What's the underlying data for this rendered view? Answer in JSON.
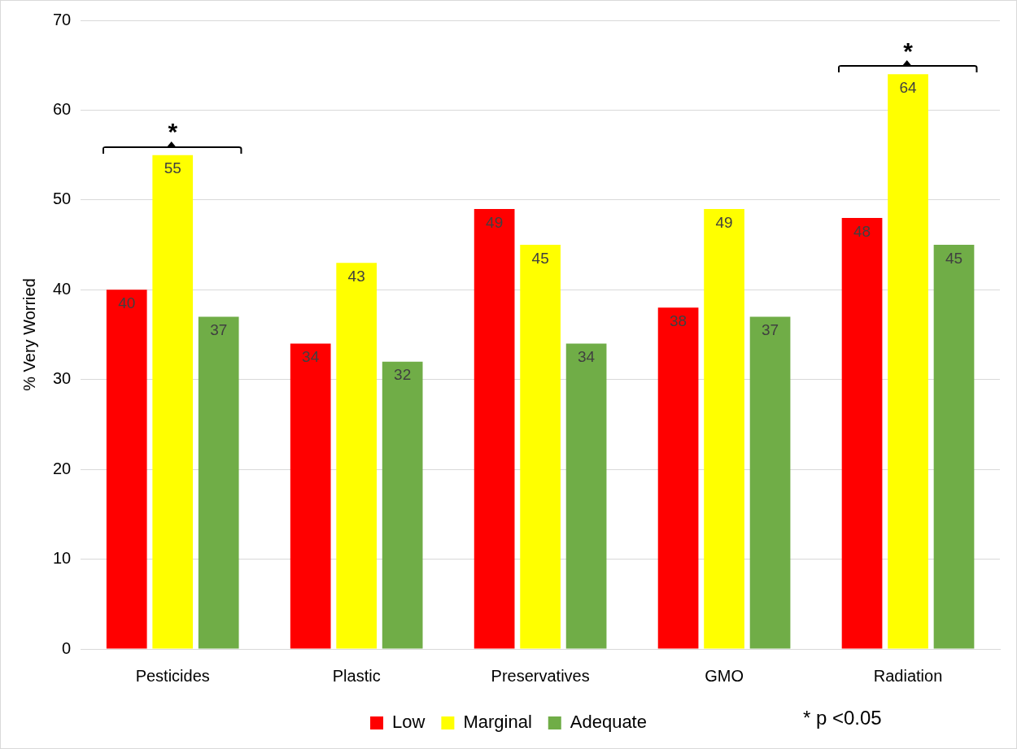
{
  "chart_data": {
    "type": "bar",
    "ylabel": "% Very Worried",
    "categories": [
      "Pesticides",
      "Plastic",
      "Preservatives",
      "GMO",
      "Radiation"
    ],
    "series": [
      {
        "name": "Low",
        "color": "#ff0000",
        "values": [
          40,
          34,
          49,
          38,
          48
        ]
      },
      {
        "name": "Marginal",
        "color": "#ffff00",
        "values": [
          55,
          43,
          45,
          49,
          64
        ]
      },
      {
        "name": "Adequate",
        "color": "#70ad47",
        "values": [
          37,
          32,
          34,
          37,
          45
        ]
      }
    ],
    "ylim": [
      0,
      70
    ],
    "yticks": [
      0,
      10,
      20,
      30,
      40,
      50,
      60,
      70
    ],
    "grid": "y",
    "legend": "bottom",
    "data_labels": true,
    "annotations": [
      "*",
      "*",
      "* p <0.05"
    ]
  }
}
